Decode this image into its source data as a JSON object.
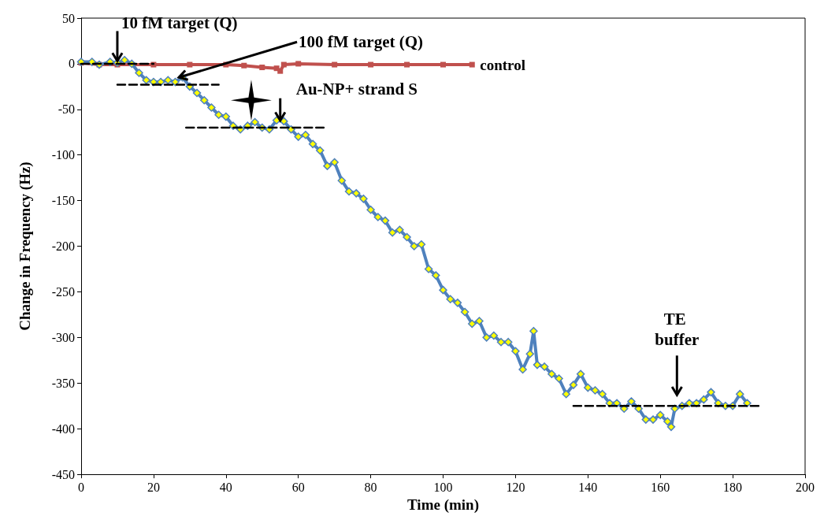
{
  "chart_data": {
    "type": "line",
    "xlabel": "Time (min)",
    "ylabel": "Change in Frequency (Hz)",
    "xlim": [
      0,
      200
    ],
    "xticks": [
      0,
      20,
      40,
      60,
      80,
      100,
      120,
      140,
      160,
      180,
      200
    ],
    "ylim": [
      -450,
      50
    ],
    "yticks": [
      -450,
      -400,
      -350,
      -300,
      -250,
      -200,
      -150,
      -100,
      -50,
      0,
      50
    ],
    "grid": false,
    "legend": false,
    "series": [
      {
        "name": "control",
        "color": "#c0504d",
        "marker": "square",
        "x": [
          0,
          5,
          10,
          20,
          30,
          40,
          45,
          50,
          54,
          55,
          56,
          60,
          70,
          80,
          90,
          100,
          108
        ],
        "values": [
          1,
          -1,
          -1,
          -1,
          -1,
          -1,
          -2,
          -4,
          -5,
          -8,
          -1,
          0,
          -1,
          -1,
          -1,
          -1,
          -1
        ]
      },
      {
        "color": "#4f81bd",
        "marker": "diamond",
        "x": [
          0,
          3,
          5,
          8,
          10,
          12,
          14,
          16,
          18,
          20,
          22,
          24,
          26,
          28,
          30,
          32,
          34,
          36,
          38,
          40,
          42,
          44,
          46,
          48,
          50,
          52,
          54,
          56,
          58,
          60,
          62,
          64,
          66,
          68,
          70,
          72,
          74,
          76,
          78,
          80,
          82,
          84,
          86,
          88,
          90,
          92,
          94,
          96,
          98,
          100,
          102,
          104,
          106,
          108,
          110,
          112,
          114,
          116,
          118,
          120,
          122,
          124,
          125,
          126,
          128,
          130,
          132,
          134,
          136,
          138,
          140,
          142,
          144,
          146,
          148,
          150,
          152,
          154,
          156,
          158,
          160,
          162,
          163,
          164,
          166,
          168,
          170,
          172,
          174,
          176,
          178,
          180,
          182,
          184
        ],
        "values": [
          2,
          2,
          -1,
          2,
          1,
          4,
          0,
          -10,
          -18,
          -20,
          -20,
          -18,
          -20,
          -15,
          -25,
          -32,
          -40,
          -48,
          -56,
          -58,
          -68,
          -72,
          -68,
          -64,
          -70,
          -72,
          -62,
          -63,
          -72,
          -80,
          -78,
          -88,
          -95,
          -112,
          -108,
          -128,
          -140,
          -142,
          -148,
          -160,
          -168,
          -172,
          -185,
          -182,
          -190,
          -200,
          -198,
          -225,
          -232,
          -248,
          -258,
          -262,
          -272,
          -285,
          -282,
          -300,
          -298,
          -305,
          -305,
          -315,
          -335,
          -318,
          -293,
          -330,
          -332,
          -340,
          -345,
          -362,
          -352,
          -340,
          -355,
          -358,
          -362,
          -372,
          -372,
          -378,
          -370,
          -378,
          -390,
          -390,
          -385,
          -392,
          -398,
          -378,
          -375,
          -372,
          -372,
          -368,
          -360,
          -372,
          -375,
          -375,
          -362,
          -372
        ]
      },
      {
        "color": "#000000",
        "marker": "none",
        "line_style": "dashed",
        "x": [
          0,
          20
        ],
        "values": [
          0,
          0
        ]
      },
      {
        "color": "#000000",
        "marker": "none",
        "line_style": "dashed",
        "x": [
          10,
          38
        ],
        "values": [
          -23,
          -23
        ]
      },
      {
        "color": "#000000",
        "marker": "none",
        "line_style": "dashed",
        "x": [
          29,
          67
        ],
        "values": [
          -70,
          -70
        ]
      },
      {
        "color": "#000000",
        "marker": "none",
        "line_style": "dashed",
        "x": [
          136,
          188
        ],
        "values": [
          -375,
          -375
        ]
      }
    ],
    "annotations": [
      {
        "text": "10 fM target (Q)",
        "x": 10,
        "y": 3
      },
      {
        "text": "100 fM target (Q)",
        "x": 27,
        "y": -15
      },
      {
        "text": "Au-NP+ strand S",
        "x": 55,
        "y": -62
      },
      "TE buffer"
    ]
  }
}
